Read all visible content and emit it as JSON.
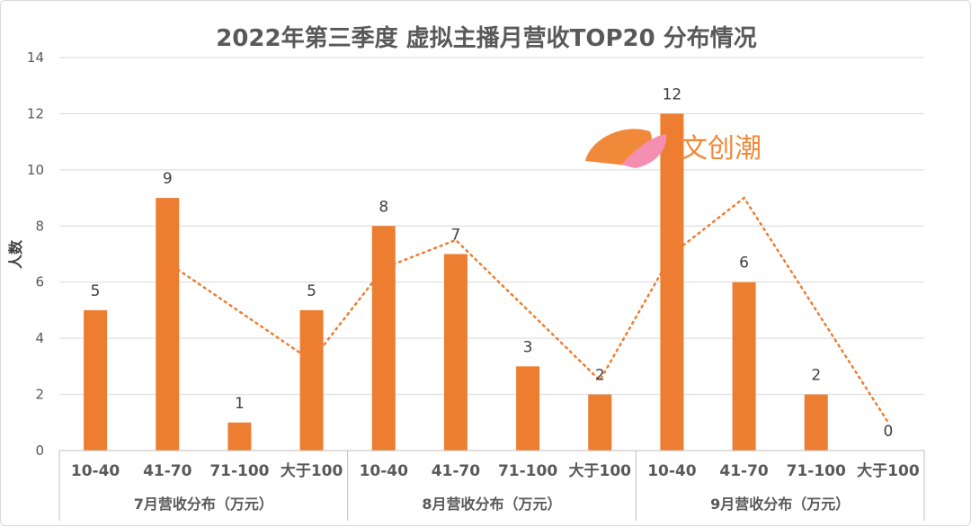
{
  "chart_data": {
    "type": "bar",
    "title": "2022年第三季度   虚拟主播月营收TOP20 分布情况",
    "ylabel": "人数",
    "xlabel": "",
    "ylim": [
      0,
      14
    ],
    "yticks": [
      0,
      2,
      4,
      6,
      8,
      10,
      12,
      14
    ],
    "grid": true,
    "groups": [
      {
        "label": "7月营收分布（万元）",
        "categories": [
          "10-40",
          "41-70",
          "71-100",
          "大于100"
        ],
        "values": [
          5,
          9,
          1,
          5
        ]
      },
      {
        "label": "8月营收分布（万元）",
        "categories": [
          "10-40",
          "41-70",
          "71-100",
          "大于100"
        ],
        "values": [
          8,
          7,
          3,
          2
        ]
      },
      {
        "label": "9月营收分布（万元）",
        "categories": [
          "10-40",
          "41-70",
          "71-100",
          "大于100"
        ],
        "values": [
          12,
          6,
          2,
          0
        ]
      }
    ],
    "trendline": {
      "style": "dotted",
      "x_index": [
        1.5,
        3.5,
        4.5,
        5.5,
        7.5,
        8.5,
        9.5,
        11.5
      ],
      "values": [
        6.7,
        3.2,
        6.5,
        7.5,
        2.5,
        7.0,
        9.0,
        1.0
      ]
    },
    "colors": {
      "bar": "#ED7D31",
      "trend": "#ED7D31",
      "grid": "#d9d9d9",
      "text": "#595959"
    }
  },
  "watermark": {
    "text": "文创潮",
    "colors": [
      "#f08a3a",
      "#f48fb1"
    ]
  }
}
